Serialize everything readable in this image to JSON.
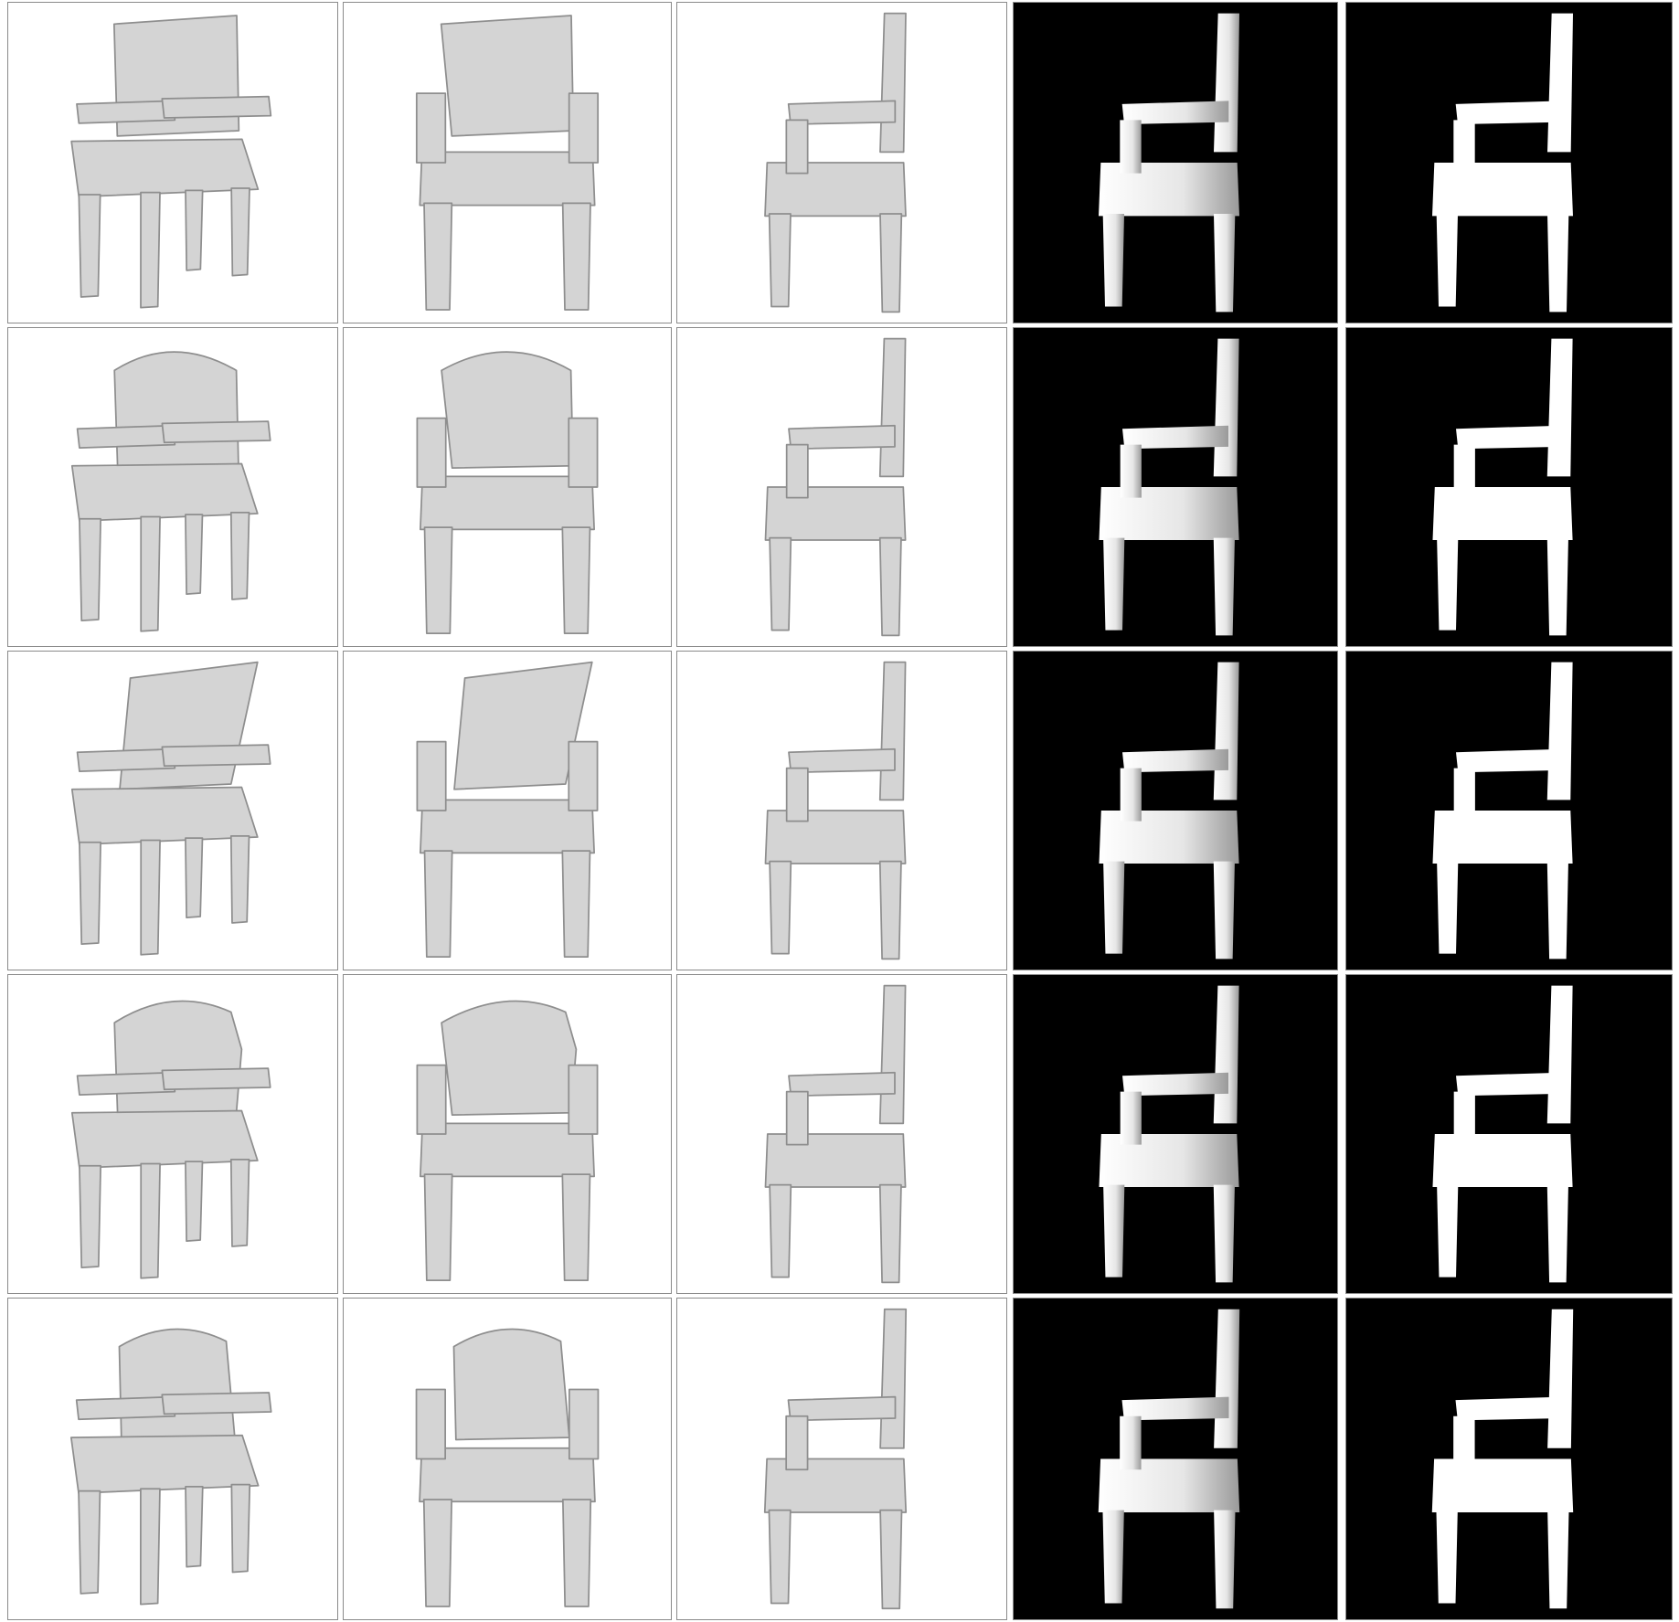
{
  "figure": {
    "rows": 5,
    "columns": [
      {
        "kind": "render",
        "view": "three-quarter",
        "background": "#ffffff"
      },
      {
        "kind": "render",
        "view": "front",
        "background": "#ffffff"
      },
      {
        "kind": "render",
        "view": "side",
        "background": "#ffffff"
      },
      {
        "kind": "depth",
        "view": "side",
        "background": "#000000"
      },
      {
        "kind": "silhouette",
        "view": "side",
        "background": "#000000"
      }
    ],
    "colors": {
      "mesh_fill": "#d4d4d4",
      "mesh_edge": "#8e8e8e",
      "mask_white": "#ffffff",
      "mask_black": "#000000",
      "cell_border": "#8a8a8a"
    },
    "row_variants": [
      "square-back",
      "round-back",
      "tall-curved-back",
      "shaped-back",
      "broken-armrest"
    ]
  }
}
